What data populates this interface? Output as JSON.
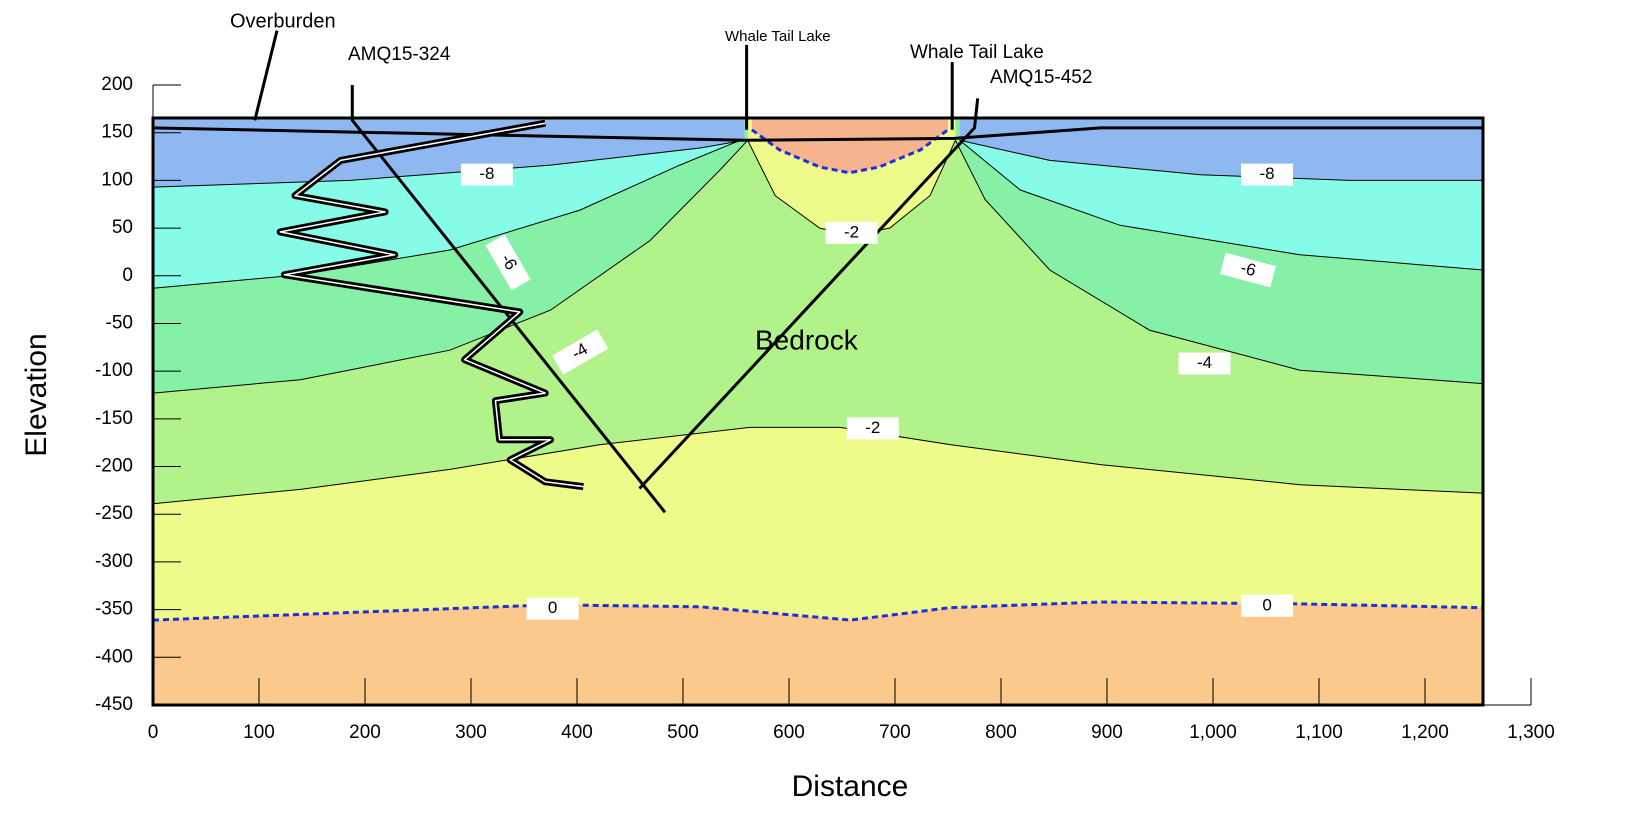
{
  "chart_data": {
    "type": "contour",
    "x_label": "Distance",
    "y_label": "Elevation",
    "xlim": [
      0,
      1300
    ],
    "ylim": [
      -450,
      200
    ],
    "xticks": [
      0,
      100,
      200,
      300,
      400,
      500,
      600,
      700,
      800,
      900,
      {
        "value": 1000,
        "label": "1,000"
      },
      {
        "value": 1100,
        "label": "1,100"
      },
      {
        "value": 1200,
        "label": "1,200"
      },
      {
        "value": 1300,
        "label": "1,300"
      }
    ],
    "yticks": [
      -450,
      -400,
      -350,
      -300,
      -250,
      -200,
      -150,
      -100,
      -50,
      0,
      50,
      100,
      150,
      200
    ],
    "grid": false,
    "background": "#fbc98c",
    "contours": [
      {
        "color": "#1f2fe0",
        "dash": true,
        "fill": "#eefa8a",
        "x": [
          0,
          186,
          375,
          516,
          658,
          752,
          894,
          1082,
          1255
        ],
        "y": [
          -361,
          -353,
          -345,
          -347,
          -361,
          -348,
          -342,
          -344,
          -348
        ]
      },
      {
        "color": "#000000",
        "fill": "#b2f28a",
        "x": [
          0,
          139,
          280,
          422,
          563,
          648,
          752,
          894,
          1082,
          1255
        ],
        "y": [
          -239,
          -224,
          -203,
          -177,
          -159,
          -159,
          -177,
          -198,
          -219,
          -228
        ]
      },
      {
        "color": "#000000",
        "fill": "#86f0a6",
        "x": [
          0,
          139,
          280,
          375,
          469,
          535,
          561
        ],
        "y": [
          -123,
          -109,
          -78,
          -36,
          37,
          111,
          142
        ]
      },
      {
        "color": "#000000",
        "fill": "#86f0a6",
        "x": [
          757,
          785,
          846,
          940,
          1082,
          1255
        ],
        "y": [
          142,
          80,
          6,
          -57,
          -99,
          -113
        ]
      },
      {
        "color": "#000000",
        "fill": "#86fbe8",
        "x": [
          0,
          139,
          280,
          403,
          497,
          554
        ],
        "y": [
          -13,
          1,
          27,
          69,
          116,
          142
        ]
      },
      {
        "color": "#000000",
        "fill": "#86fbe8",
        "x": [
          761,
          818,
          912,
          1082,
          1255
        ],
        "y": [
          142,
          90,
          53,
          22,
          6
        ]
      },
      {
        "color": "#000000",
        "fill": "#90b8f0",
        "x": [
          0,
          186,
          375,
          516,
          558
        ],
        "y": [
          93,
          100,
          116,
          134,
          142
        ]
      },
      {
        "color": "#000000",
        "fill": "#90b8f0",
        "x": [
          761,
          846,
          988,
          1129,
          1255
        ],
        "y": [
          142,
          121,
          106,
          100,
          100
        ]
      },
      {
        "color": "#000000",
        "fill": "#eefa8a",
        "x": [
          561,
          587,
          629,
          659,
          695,
          733,
          757
        ],
        "y": [
          142,
          84,
          50,
          43,
          50,
          84,
          142
        ]
      },
      {
        "color": "#1f2fe0",
        "dash": true,
        "fill": "#f6b48e",
        "x": [
          565,
          591,
          629,
          657,
          685,
          724,
          750
        ],
        "y": [
          153,
          132,
          114,
          108,
          114,
          132,
          153
        ]
      }
    ],
    "contour_labels": {
      "x": [
        315,
        1051,
        335,
        1033,
        403,
        992,
        659,
        679,
        377,
        1051
      ],
      "y": [
        106,
        106,
        14,
        6,
        -80,
        -92,
        45,
        -160,
        -349,
        -346
      ],
      "values": [
        -8,
        -8,
        -6,
        -6,
        -4,
        -4,
        -2,
        -2,
        0,
        0
      ]
    },
    "lines": [
      {
        "x": [
          0,
          558,
          756,
          894,
          1255
        ],
        "y": [
          155,
          142,
          144,
          155,
          155
        ]
      },
      {
        "x": [
          188,
          188,
          483
        ],
        "y": [
          200,
          163,
          -248
        ]
      },
      {
        "x": [
          778,
          775,
          459
        ],
        "y": [
          186,
          155,
          -223
        ]
      },
      {
        "x": [
          560,
          560
        ],
        "y": [
          242,
          153
        ]
      },
      {
        "x": [
          754,
          754
        ],
        "y": [
          224,
          153
        ]
      },
      {
        "x": [
          117,
          96
        ],
        "y": [
          257,
          163
        ]
      }
    ],
    "profile": {
      "x": [
        370,
        177,
        134,
        219,
        120,
        228,
        124,
        346,
        294,
        370,
        323,
        327,
        375,
        337,
        370,
        406
      ],
      "y": [
        160,
        121,
        84,
        67,
        46,
        22,
        1,
        -38,
        -88,
        -123,
        -131,
        -172,
        -172,
        -193,
        -216,
        -221
      ]
    },
    "annotations": [
      "Overburden",
      "AMQ15-324",
      "Whale Tail Lake",
      "Whale Tail Lake",
      "AMQ15-452",
      "Bedrock"
    ]
  }
}
